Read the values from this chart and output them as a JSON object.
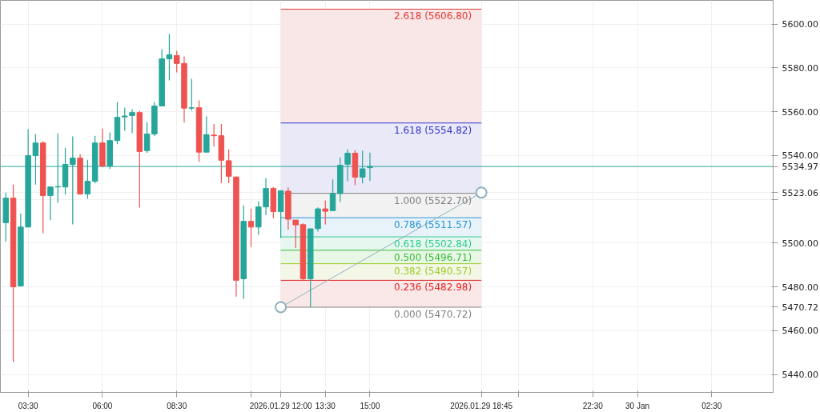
{
  "chart_data": {
    "type": "candlestick",
    "x": [
      "2026-01-29T02:45",
      "2026-01-29T03:00",
      "2026-01-29T03:15",
      "2026-01-29T03:30",
      "2026-01-29T03:45",
      "2026-01-29T04:00",
      "2026-01-29T04:15",
      "2026-01-29T04:30",
      "2026-01-29T04:45",
      "2026-01-29T05:00",
      "2026-01-29T05:15",
      "2026-01-29T05:30",
      "2026-01-29T05:45",
      "2026-01-29T06:00",
      "2026-01-29T06:15",
      "2026-01-29T06:30",
      "2026-01-29T06:45",
      "2026-01-29T07:00",
      "2026-01-29T07:15",
      "2026-01-29T07:30",
      "2026-01-29T07:45",
      "2026-01-29T08:00",
      "2026-01-29T08:15",
      "2026-01-29T08:30",
      "2026-01-29T08:45",
      "2026-01-29T09:00",
      "2026-01-29T09:15",
      "2026-01-29T09:30",
      "2026-01-29T09:45",
      "2026-01-29T10:00",
      "2026-01-29T10:15",
      "2026-01-29T10:30",
      "2026-01-29T10:45",
      "2026-01-29T11:00",
      "2026-01-29T11:15",
      "2026-01-29T11:30",
      "2026-01-29T11:45",
      "2026-01-29T12:00",
      "2026-01-29T12:15",
      "2026-01-29T12:30",
      "2026-01-29T12:45",
      "2026-01-29T13:00",
      "2026-01-29T13:15",
      "2026-01-29T13:30",
      "2026-01-29T13:45",
      "2026-01-29T14:00",
      "2026-01-29T14:15",
      "2026-01-29T14:30",
      "2026-01-29T14:45",
      "2026-01-29T15:00"
    ],
    "ohlc": [
      [
        5509.3,
        5523.0,
        5500.7,
        5520.5
      ],
      [
        5520.5,
        5526.7,
        5445.6,
        5480.0
      ],
      [
        5480.4,
        5513.5,
        5480.4,
        5507.3
      ],
      [
        5507.3,
        5552.0,
        5507.3,
        5539.9
      ],
      [
        5539.9,
        5549.8,
        5526.7,
        5545.7
      ],
      [
        5545.7,
        5546.5,
        5504.5,
        5521.7
      ],
      [
        5521.7,
        5525.6,
        5510.4,
        5525.6
      ],
      [
        5525.6,
        5550.1,
        5518.4,
        5525.8
      ],
      [
        5525.6,
        5543.5,
        5522.1,
        5535.9
      ],
      [
        5535.9,
        5548.7,
        5508.5,
        5538.8
      ],
      [
        5538.8,
        5540.6,
        5522.1,
        5522.4
      ],
      [
        5522.4,
        5538.0,
        5520.2,
        5528.2
      ],
      [
        5528.2,
        5549.0,
        5527.2,
        5545.7
      ],
      [
        5545.7,
        5552.3,
        5534.5,
        5535.2
      ],
      [
        5535.2,
        5550.5,
        5533.8,
        5546.8
      ],
      [
        5546.8,
        5564.4,
        5545.1,
        5557.4
      ],
      [
        5557.6,
        5561.8,
        5551.3,
        5558.0
      ],
      [
        5558.2,
        5561.1,
        5550.2,
        5559.6
      ],
      [
        5559.6,
        5560.4,
        5516.2,
        5541.8
      ],
      [
        5542.2,
        5555.2,
        5541.1,
        5549.8
      ],
      [
        5549.8,
        5564.4,
        5548.8,
        5562.6
      ],
      [
        5562.6,
        5588.5,
        5562.6,
        5584.1
      ],
      [
        5584.1,
        5595.5,
        5574.3,
        5586.0
      ],
      [
        5585.6,
        5587.8,
        5577.9,
        5582.0
      ],
      [
        5582.0,
        5585.2,
        5555.0,
        5561.6
      ],
      [
        5561.6,
        5575.0,
        5560.5,
        5561.8
      ],
      [
        5561.8,
        5565.1,
        5537.1,
        5541.5
      ],
      [
        5541.5,
        5557.8,
        5541.5,
        5549.5
      ],
      [
        5549.3,
        5554.4,
        5544.0,
        5549.0
      ],
      [
        5549.0,
        5554.4,
        5527.3,
        5537.8
      ],
      [
        5537.6,
        5542.8,
        5527.3,
        5530.5
      ],
      [
        5530.2,
        5530.2,
        5475.5,
        5483.0
      ],
      [
        5483.7,
        5517.2,
        5474.5,
        5509.9
      ],
      [
        5509.9,
        5515.7,
        5498.3,
        5507.3
      ],
      [
        5507.3,
        5519.0,
        5503.8,
        5516.5
      ],
      [
        5516.5,
        5529.6,
        5512.8,
        5524.9
      ],
      [
        5524.9,
        5525.6,
        5511.3,
        5514.4
      ],
      [
        5514.4,
        5523.9,
        5502.3,
        5523.9
      ],
      [
        5523.7,
        5525.4,
        5506.1,
        5510.9
      ],
      [
        5510.5,
        5510.5,
        5497.7,
        5508.3
      ],
      [
        5508.4,
        5509.0,
        5482.7,
        5483.7
      ],
      [
        5483.7,
        5506.5,
        5470.72,
        5506.5
      ],
      [
        5506.6,
        5516.3,
        5505.2,
        5515.6
      ],
      [
        5515.6,
        5519.4,
        5508.5,
        5514.5
      ],
      [
        5514.8,
        5529.1,
        5514.8,
        5522.6
      ],
      [
        5522.6,
        5539.1,
        5518.8,
        5535.5
      ],
      [
        5536.0,
        5542.8,
        5528.2,
        5541.0
      ],
      [
        5541.0,
        5542.4,
        5526.5,
        5530.1
      ],
      [
        5530.1,
        5542.1,
        5527.2,
        5533.9
      ],
      [
        5534.4,
        5541.3,
        5528.3,
        5534.97
      ]
    ],
    "colors": [
      "#26a69a",
      "#ef5350",
      "#26a69a",
      "#26a69a",
      "#26a69a",
      "#ef5350",
      "#26a69a",
      "#26a69a",
      "#26a69a",
      "#26a69a",
      "#ef5350",
      "#26a69a",
      "#26a69a",
      "#ef5350",
      "#26a69a",
      "#26a69a",
      "#26a69a",
      "#26a69a",
      "#ef5350",
      "#26a69a",
      "#26a69a",
      "#26a69a",
      "#26a69a",
      "#ef5350",
      "#ef5350",
      "#26a69a",
      "#ef5350",
      "#26a69a",
      "#ef5350",
      "#ef5350",
      "#ef5350",
      "#ef5350",
      "#26a69a",
      "#ef5350",
      "#26a69a",
      "#26a69a",
      "#ef5350",
      "#26a69a",
      "#ef5350",
      "#ef5350",
      "#ef5350",
      "#26a69a",
      "#26a69a",
      "#ef5350",
      "#26a69a",
      "#26a69a",
      "#26a69a",
      "#ef5350",
      "#26a69a",
      "#26a69a"
    ],
    "series": [
      {
        "type": "line",
        "name": "2.618 (5606.80)",
        "color": "#e53935",
        "x": [
          "2026-01-29T12:00",
          "2026-01-29T18:45"
        ],
        "values": [
          5606.8,
          5606.8
        ]
      },
      {
        "type": "line",
        "name": "1.618 (5554.82)",
        "color": "#3535d0",
        "x": [
          "2026-01-29T12:00",
          "2026-01-29T18:45"
        ],
        "values": [
          5554.82,
          5554.82
        ]
      },
      {
        "type": "line",
        "name": "1.000 (5522.70)",
        "color": "#808080",
        "x": [
          "2026-01-29T12:00",
          "2026-01-29T18:45"
        ],
        "values": [
          5522.7,
          5522.7
        ]
      },
      {
        "type": "line",
        "name": "0.786 (5511.57)",
        "color": "#2a97d6",
        "x": [
          "2026-01-29T12:00",
          "2026-01-29T18:45"
        ],
        "values": [
          5511.57,
          5511.57
        ]
      },
      {
        "type": "line",
        "name": "0.618 (5502.84)",
        "color": "#2fcc8f",
        "x": [
          "2026-01-29T12:00",
          "2026-01-29T18:45"
        ],
        "values": [
          5502.84,
          5502.84
        ]
      },
      {
        "type": "line",
        "name": "0.500 (5496.71)",
        "color": "#35be35",
        "x": [
          "2026-01-29T12:00",
          "2026-01-29T18:45"
        ],
        "values": [
          5496.71,
          5496.71
        ]
      },
      {
        "type": "line",
        "name": "0.382 (5490.57)",
        "color": "#9ccc24",
        "x": [
          "2026-01-29T12:00",
          "2026-01-29T18:45"
        ],
        "values": [
          5490.57,
          5490.57
        ]
      },
      {
        "type": "line",
        "name": "0.236 (5482.98)",
        "color": "#e02424",
        "x": [
          "2026-01-29T12:00",
          "2026-01-29T18:45"
        ],
        "values": [
          5482.98,
          5482.98
        ]
      },
      {
        "type": "line",
        "name": "0.000 (5470.72)",
        "color": "#808080",
        "x": [
          "2026-01-29T12:00",
          "2026-01-29T18:45"
        ],
        "values": [
          5470.72,
          5470.72
        ]
      },
      {
        "type": "line",
        "color": "#90b0bc",
        "marker": "circle",
        "x": [
          "2026-01-29T12:00",
          "2026-01-29T18:45"
        ],
        "values": [
          5470.72,
          5523.06
        ]
      }
    ],
    "bands": [
      {
        "axis": "y",
        "from": 5554.82,
        "to": 5606.8,
        "color": "#f9e6e7"
      },
      {
        "axis": "y",
        "from": 5522.7,
        "to": 5554.82,
        "color": "#e9e9f8"
      },
      {
        "axis": "y",
        "from": 5511.57,
        "to": 5522.7,
        "color": "#f2f2f2"
      },
      {
        "axis": "y",
        "from": 5502.84,
        "to": 5511.57,
        "color": "#e7f2f9"
      },
      {
        "axis": "y",
        "from": 5496.71,
        "to": 5502.84,
        "color": "#e6f7f0"
      },
      {
        "axis": "y",
        "from": 5490.57,
        "to": 5496.71,
        "color": "#e8f6e6"
      },
      {
        "axis": "y",
        "from": 5482.98,
        "to": 5490.57,
        "color": "#f4f7e8"
      },
      {
        "axis": "y",
        "from": 5470.72,
        "to": 5482.98,
        "color": "#fae8e8"
      }
    ],
    "ref_lines": [
      {
        "axis": "y",
        "value": 5534.97,
        "label": "5534.97",
        "color": "#26a69a"
      }
    ],
    "xlim": [
      "2026-01-29T02:34",
      "2026-01-30T04:34"
    ],
    "xticks": [
      {
        "value": "2026-01-29T03:30",
        "label": "03:30"
      },
      {
        "value": "2026-01-29T06:00",
        "label": "06:00"
      },
      {
        "value": "2026-01-29T08:30",
        "label": "08:30"
      },
      {
        "value": "2026-01-29T11:00",
        "label": null
      },
      {
        "value": "2026-01-29T12:00",
        "label": "2026.01.29 12:00"
      },
      {
        "value": "2026-01-29T13:30",
        "label": "13:30"
      },
      {
        "value": "2026-01-29T15:00",
        "label": "15:00"
      },
      {
        "value": "2026-01-29T18:45",
        "label": "2026.01.29 18:45"
      },
      {
        "value": "2026-01-29T20:00",
        "label": null
      },
      {
        "value": "2026-01-29T22:30",
        "label": "22:30"
      },
      {
        "value": "2026-01-30T00:00",
        "label": "30 Jan"
      },
      {
        "value": "2026-01-30T02:30",
        "label": "02:30"
      }
    ],
    "ylim": [
      5431.8,
      5610.8
    ],
    "yticks": [
      {
        "value": 5440,
        "label": "5440.00"
      },
      {
        "value": 5460,
        "label": "5460.00"
      },
      5470.72,
      {
        "value": 5480,
        "label": "5480.00"
      },
      {
        "value": 5500,
        "label": "5500.00"
      },
      {
        "value": 5520,
        "label": null
      },
      5523.06,
      {
        "value": 5540,
        "label": "5540.00"
      },
      {
        "value": 5560,
        "label": "5560.00"
      },
      {
        "value": 5580,
        "label": "5580.00"
      },
      {
        "value": 5600,
        "label": "5600.00"
      }
    ],
    "grid": true
  }
}
